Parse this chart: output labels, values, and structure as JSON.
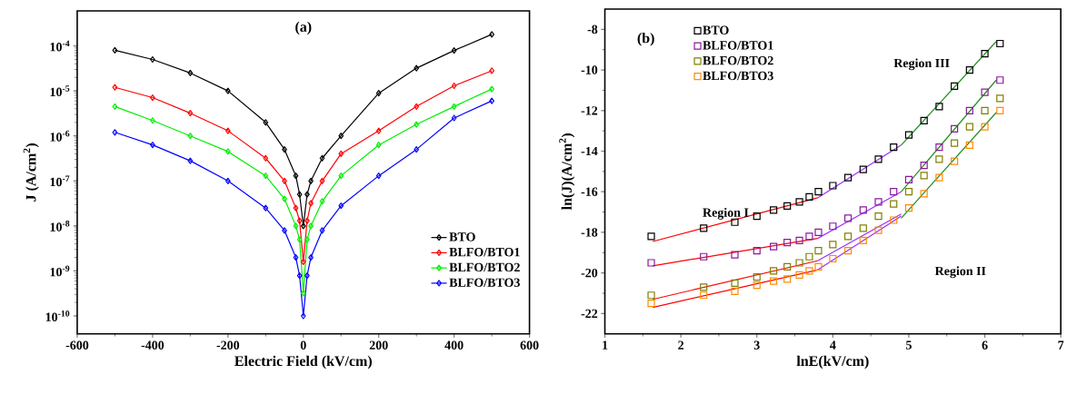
{
  "chart_data": [
    {
      "type": "line",
      "title": "(a)",
      "xlabel": "Electric Field (kV/cm)",
      "ylabel": "J (A/cm$^{2}$)",
      "log": "y",
      "marker": "diamond",
      "legend": "bottom right",
      "xlim": [
        -600,
        600
      ],
      "ylim": [
        4e-11,
        0.0006
      ],
      "xticks": [
        -600,
        -400,
        -200,
        0,
        200,
        400,
        600
      ],
      "yticks": [
        {
          "value": 1e-10,
          "label": "10$^{-10}$"
        },
        {
          "value": 1e-09,
          "label": "10$^{-9}$"
        },
        {
          "value": 1e-08,
          "label": "10$^{-8}$"
        },
        {
          "value": 1e-07,
          "label": "10$^{-7}$"
        },
        {
          "value": 1e-06,
          "label": "10$^{-6}$"
        },
        {
          "value": 1e-05,
          "label": "10$^{-5}$"
        },
        {
          "value": 0.0001,
          "label": "10$^{-4}$"
        }
      ],
      "x": [
        -500,
        -400,
        -300,
        -200,
        -100,
        -50,
        -20,
        -10,
        0,
        10,
        20,
        50,
        100,
        200,
        300,
        400,
        500
      ],
      "series": [
        {
          "name": "BTO",
          "color": "#000000",
          "values": [
            8e-05,
            5e-05,
            2.5e-05,
            1e-05,
            2e-06,
            5e-07,
            1.3e-07,
            5e-08,
            1e-08,
            5e-08,
            1e-07,
            3.2e-07,
            1e-06,
            8.9e-06,
            3.2e-05,
            7.9e-05,
            0.00018
          ]
        },
        {
          "name": "BLFO/BTO1",
          "color": "#ff0000",
          "values": [
            1.2e-05,
            7.1e-06,
            3.2e-06,
            1.3e-06,
            3.2e-07,
            1e-07,
            2.5e-08,
            1.3e-08,
            1.6e-09,
            1.3e-08,
            3.2e-08,
            1e-07,
            4e-07,
            1.3e-06,
            4.5e-06,
            1.3e-05,
            2.8e-05
          ]
        },
        {
          "name": "BLFO/BTO2",
          "color": "#00ee00",
          "values": [
            4.5e-06,
            2.2e-06,
            1e-06,
            4.5e-07,
            1.3e-07,
            4e-08,
            1e-08,
            5e-09,
            3.2e-10,
            5e-09,
            1e-08,
            3.5e-08,
            1.3e-07,
            6.3e-07,
            1.8e-06,
            4.5e-06,
            1.1e-05
          ]
        },
        {
          "name": "BLFO/BTO3",
          "color": "#0000ff",
          "values": [
            1.2e-06,
            6.3e-07,
            2.8e-07,
            1e-07,
            2.5e-08,
            7.9e-09,
            2e-09,
            7.9e-10,
            1e-10,
            7.9e-10,
            2e-09,
            7.9e-09,
            2.8e-08,
            1.3e-07,
            5e-07,
            2.5e-06,
            6e-06
          ]
        }
      ]
    },
    {
      "type": "scatter",
      "title": "(b)",
      "xlabel": "lnE(kV/cm)",
      "ylabel": "ln(J)(A/cm$^{2}$)",
      "marker": "square",
      "legend": "top left",
      "xlim": [
        1,
        7
      ],
      "ylim": [
        -23,
        -7
      ],
      "xticks": [
        1,
        2,
        3,
        4,
        5,
        6,
        7
      ],
      "yticks": [
        -22,
        -20,
        -18,
        -16,
        -14,
        -12,
        -10,
        -8
      ],
      "annotations": [
        "Region I",
        "Region II",
        "Region III"
      ],
      "series": [
        {
          "name": "BTO",
          "color": "#000000",
          "x": [
            1.61,
            2.3,
            2.71,
            3.0,
            3.22,
            3.4,
            3.56,
            3.69,
            3.81,
            4.0,
            4.2,
            4.4,
            4.6,
            4.8,
            5.0,
            5.2,
            5.4,
            5.6,
            5.8,
            6.0,
            6.2
          ],
          "values": [
            -18.2,
            -17.8,
            -17.5,
            -17.2,
            -16.9,
            -16.7,
            -16.5,
            -16.25,
            -16.0,
            -15.7,
            -15.3,
            -14.9,
            -14.4,
            -13.8,
            -13.2,
            -12.5,
            -11.8,
            -10.8,
            -10.0,
            -9.2,
            -8.7
          ]
        },
        {
          "name": "BLFO/BTO1",
          "color": "#8b1a9b",
          "x": [
            1.61,
            2.3,
            2.71,
            3.0,
            3.22,
            3.4,
            3.56,
            3.69,
            3.81,
            4.0,
            4.2,
            4.4,
            4.6,
            4.8,
            5.0,
            5.2,
            5.4,
            5.6,
            5.8,
            6.0,
            6.2
          ],
          "values": [
            -19.5,
            -19.2,
            -19.1,
            -18.9,
            -18.7,
            -18.5,
            -18.4,
            -18.2,
            -18.0,
            -17.7,
            -17.3,
            -16.9,
            -16.5,
            -16.0,
            -15.4,
            -14.7,
            -13.8,
            -12.9,
            -12.0,
            -11.1,
            -10.5
          ]
        },
        {
          "name": "BLFO/BTO2",
          "color": "#808000",
          "x": [
            1.61,
            2.3,
            2.71,
            3.0,
            3.22,
            3.4,
            3.56,
            3.69,
            3.81,
            4.0,
            4.2,
            4.4,
            4.6,
            4.8,
            5.0,
            5.2,
            5.4,
            5.6,
            5.8,
            6.0,
            6.2
          ],
          "values": [
            -21.1,
            -20.7,
            -20.5,
            -20.2,
            -19.9,
            -19.7,
            -19.5,
            -19.2,
            -18.9,
            -18.6,
            -18.2,
            -17.8,
            -17.2,
            -16.6,
            -16.0,
            -15.2,
            -14.4,
            -13.6,
            -12.8,
            -12.0,
            -11.4
          ]
        },
        {
          "name": "BLFO/BTO3",
          "color": "#ff8c00",
          "x": [
            1.61,
            2.3,
            2.71,
            3.0,
            3.22,
            3.4,
            3.56,
            3.69,
            3.81,
            4.0,
            4.2,
            4.4,
            4.6,
            4.8,
            5.0,
            5.2,
            5.4,
            5.6,
            5.8,
            6.0,
            6.2
          ],
          "values": [
            -21.5,
            -21.1,
            -20.9,
            -20.6,
            -20.4,
            -20.3,
            -20.1,
            -19.9,
            -19.7,
            -19.3,
            -18.9,
            -18.4,
            -17.9,
            -17.4,
            -16.8,
            -16.1,
            -15.3,
            -14.5,
            -13.7,
            -12.8,
            -12.0
          ]
        },
        {
          "type": "line",
          "marker": "none",
          "color": "#ff0000",
          "x": [
            1.63,
            3.8
          ],
          "values": [
            -18.45,
            -16.3
          ]
        },
        {
          "type": "line",
          "marker": "none",
          "color": "#ff0000",
          "x": [
            1.63,
            3.8
          ],
          "values": [
            -19.65,
            -18.3
          ]
        },
        {
          "type": "line",
          "marker": "none",
          "color": "#ff0000",
          "x": [
            1.63,
            3.8
          ],
          "values": [
            -21.3,
            -19.4
          ]
        },
        {
          "type": "line",
          "marker": "none",
          "color": "#ff0000",
          "x": [
            1.63,
            3.8
          ],
          "values": [
            -21.7,
            -19.85
          ]
        },
        {
          "type": "line",
          "marker": "none",
          "color": "#9b30ff",
          "x": [
            3.8,
            4.9
          ],
          "values": [
            -16.3,
            -13.7
          ]
        },
        {
          "type": "line",
          "marker": "none",
          "color": "#9b30ff",
          "x": [
            3.8,
            4.9
          ],
          "values": [
            -18.3,
            -16.0
          ]
        },
        {
          "type": "line",
          "marker": "none",
          "color": "#9b30ff",
          "x": [
            3.8,
            4.9
          ],
          "values": [
            -19.4,
            -17.1
          ]
        },
        {
          "type": "line",
          "marker": "none",
          "color": "#9b30ff",
          "x": [
            3.8,
            4.9
          ],
          "values": [
            -19.85,
            -17.2
          ]
        },
        {
          "type": "line",
          "marker": "none",
          "color": "#228b22",
          "x": [
            4.9,
            6.15
          ],
          "values": [
            -13.7,
            -8.6
          ]
        },
        {
          "type": "line",
          "marker": "none",
          "color": "#228b22",
          "x": [
            4.9,
            6.15
          ],
          "values": [
            -16.0,
            -10.5
          ]
        },
        {
          "type": "line",
          "marker": "none",
          "color": "#228b22",
          "x": [
            4.9,
            6.15
          ],
          "values": [
            -17.3,
            -12.1
          ]
        }
      ]
    }
  ]
}
